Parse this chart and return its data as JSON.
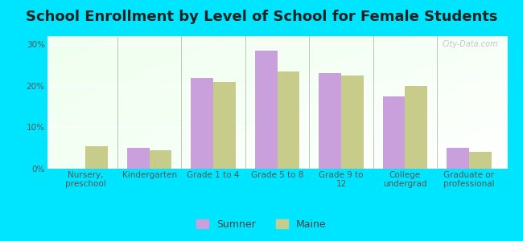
{
  "title": "School Enrollment by Level of School for Female Students",
  "categories": [
    "Nursery,\npreschool",
    "Kindergarten",
    "Grade 1 to 4",
    "Grade 5 to 8",
    "Grade 9 to\n12",
    "College\nundergrad",
    "Graduate or\nprofessional"
  ],
  "sumner_values": [
    0,
    5.0,
    22.0,
    28.5,
    23.0,
    17.5,
    5.0
  ],
  "maine_values": [
    5.5,
    4.5,
    21.0,
    23.5,
    22.5,
    20.0,
    4.0
  ],
  "sumner_color": "#c9a0dc",
  "maine_color": "#c8cc8a",
  "background_color": "#00e5ff",
  "yticks": [
    0,
    10,
    20,
    30
  ],
  "ylim": [
    0,
    32
  ],
  "bar_width": 0.35,
  "title_fontsize": 13,
  "tick_fontsize": 7.5,
  "legend_labels": [
    "Sumner",
    "Maine"
  ],
  "watermark": "City-Data.com"
}
